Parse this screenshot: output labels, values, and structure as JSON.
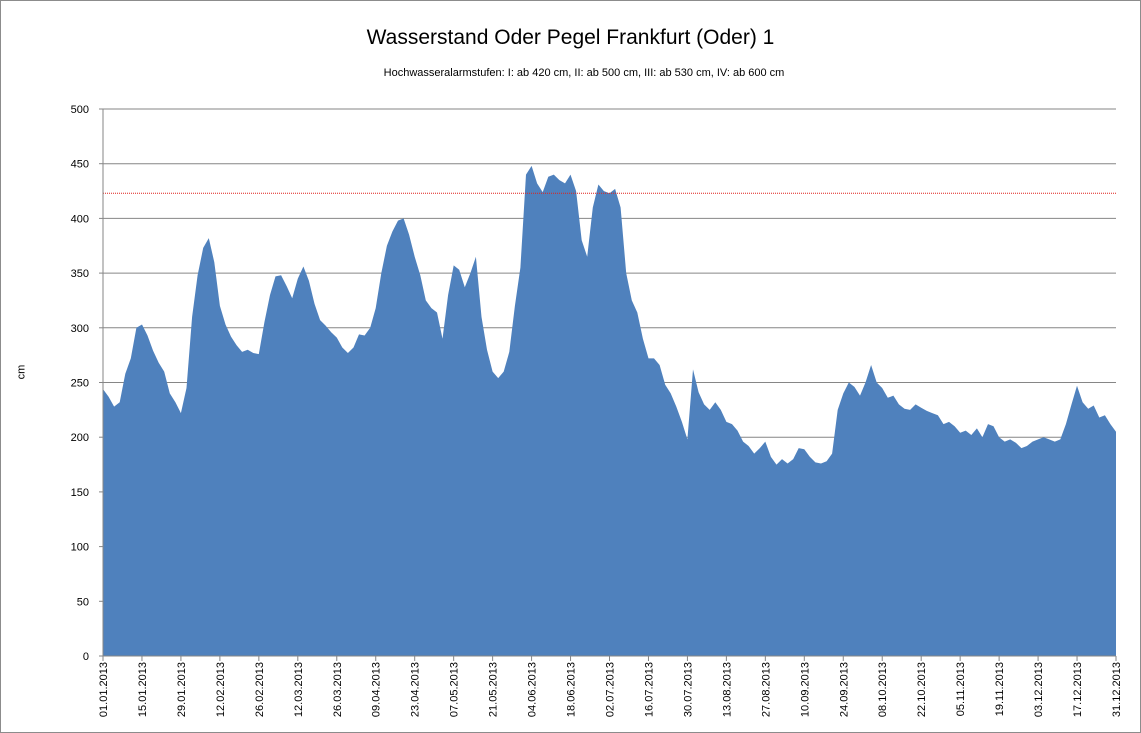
{
  "chart_data": {
    "type": "area",
    "title": "Wasserstand Oder Pegel Frankfurt (Oder) 1",
    "subtitle": "Hochwasseralarmstufen: I: ab 420 cm, II: ab 500 cm, III: ab 530 cm,  IV: ab 600 cm",
    "ylabel": "cm",
    "xlabel": "",
    "ylim": [
      0,
      500
    ],
    "yticks": [
      0,
      50,
      100,
      150,
      200,
      250,
      300,
      350,
      400,
      450,
      500
    ],
    "grid": "horizontal",
    "legend": "none",
    "colors": {
      "area": "#4f81bd",
      "threshold": "#e0201b",
      "grid": "#868686"
    },
    "threshold_line": 423,
    "x_start": "01.01.2013",
    "x_end": "31.12.2013",
    "x_tick_labels": [
      "01.01.2013",
      "15.01.2013",
      "29.01.2013",
      "12.02.2013",
      "26.02.2013",
      "12.03.2013",
      "26.03.2013",
      "09.04.2013",
      "23.04.2013",
      "07.05.2013",
      "21.05.2013",
      "04.06.2013",
      "18.06.2013",
      "02.07.2013",
      "16.07.2013",
      "30.07.2013",
      "13.08.2013",
      "27.08.2013",
      "10.09.2013",
      "24.09.2013",
      "08.10.2013",
      "22.10.2013",
      "05.11.2013",
      "19.11.2013",
      "03.12.2013",
      "17.12.2013",
      "31.12.2013"
    ],
    "series": [
      {
        "points": [
          [
            "01.01.2013",
            244
          ],
          [
            "03.01.2013",
            237
          ],
          [
            "05.01.2013",
            228
          ],
          [
            "07.01.2013",
            232
          ],
          [
            "09.01.2013",
            258
          ],
          [
            "11.01.2013",
            272
          ],
          [
            "13.01.2013",
            300
          ],
          [
            "15.01.2013",
            303
          ],
          [
            "17.01.2013",
            293
          ],
          [
            "19.01.2013",
            279
          ],
          [
            "21.01.2013",
            268
          ],
          [
            "23.01.2013",
            260
          ],
          [
            "25.01.2013",
            240
          ],
          [
            "27.01.2013",
            232
          ],
          [
            "29.01.2013",
            222
          ],
          [
            "31.01.2013",
            245
          ],
          [
            "02.02.2013",
            310
          ],
          [
            "04.02.2013",
            348
          ],
          [
            "06.02.2013",
            373
          ],
          [
            "08.02.2013",
            382
          ],
          [
            "10.02.2013",
            360
          ],
          [
            "12.02.2013",
            320
          ],
          [
            "14.02.2013",
            303
          ],
          [
            "16.02.2013",
            292
          ],
          [
            "18.02.2013",
            284
          ],
          [
            "20.02.2013",
            278
          ],
          [
            "22.02.2013",
            280
          ],
          [
            "24.02.2013",
            277
          ],
          [
            "26.02.2013",
            276
          ],
          [
            "28.02.2013",
            305
          ],
          [
            "02.03.2013",
            330
          ],
          [
            "04.03.2013",
            347
          ],
          [
            "06.03.2013",
            348
          ],
          [
            "08.03.2013",
            338
          ],
          [
            "10.03.2013",
            327
          ],
          [
            "12.03.2013",
            345
          ],
          [
            "14.03.2013",
            356
          ],
          [
            "16.03.2013",
            343
          ],
          [
            "18.03.2013",
            322
          ],
          [
            "20.03.2013",
            307
          ],
          [
            "22.03.2013",
            302
          ],
          [
            "24.03.2013",
            296
          ],
          [
            "26.03.2013",
            291
          ],
          [
            "28.03.2013",
            282
          ],
          [
            "30.03.2013",
            277
          ],
          [
            "01.04.2013",
            282
          ],
          [
            "03.04.2013",
            294
          ],
          [
            "05.04.2013",
            293
          ],
          [
            "07.04.2013",
            300
          ],
          [
            "09.04.2013",
            318
          ],
          [
            "11.04.2013",
            350
          ],
          [
            "13.04.2013",
            375
          ],
          [
            "15.04.2013",
            388
          ],
          [
            "17.04.2013",
            398
          ],
          [
            "19.04.2013",
            400
          ],
          [
            "21.04.2013",
            385
          ],
          [
            "23.04.2013",
            365
          ],
          [
            "25.04.2013",
            348
          ],
          [
            "27.04.2013",
            325
          ],
          [
            "29.04.2013",
            318
          ],
          [
            "01.05.2013",
            314
          ],
          [
            "03.05.2013",
            290
          ],
          [
            "05.05.2013",
            330
          ],
          [
            "07.05.2013",
            357
          ],
          [
            "09.05.2013",
            353
          ],
          [
            "11.05.2013",
            337
          ],
          [
            "13.05.2013",
            350
          ],
          [
            "15.05.2013",
            365
          ],
          [
            "17.05.2013",
            310
          ],
          [
            "19.05.2013",
            280
          ],
          [
            "21.05.2013",
            260
          ],
          [
            "23.05.2013",
            254
          ],
          [
            "25.05.2013",
            260
          ],
          [
            "27.05.2013",
            278
          ],
          [
            "29.05.2013",
            320
          ],
          [
            "31.05.2013",
            355
          ],
          [
            "02.06.2013",
            440
          ],
          [
            "04.06.2013",
            448
          ],
          [
            "06.06.2013",
            432
          ],
          [
            "08.06.2013",
            424
          ],
          [
            "10.06.2013",
            438
          ],
          [
            "12.06.2013",
            440
          ],
          [
            "14.06.2013",
            435
          ],
          [
            "16.06.2013",
            432
          ],
          [
            "18.06.2013",
            440
          ],
          [
            "20.06.2013",
            425
          ],
          [
            "22.06.2013",
            380
          ],
          [
            "24.06.2013",
            365
          ],
          [
            "26.06.2013",
            410
          ],
          [
            "28.06.2013",
            431
          ],
          [
            "30.06.2013",
            425
          ],
          [
            "02.07.2013",
            423
          ],
          [
            "04.07.2013",
            427
          ],
          [
            "06.07.2013",
            410
          ],
          [
            "08.07.2013",
            350
          ],
          [
            "10.07.2013",
            325
          ],
          [
            "12.07.2013",
            314
          ],
          [
            "14.07.2013",
            290
          ],
          [
            "16.07.2013",
            272
          ],
          [
            "18.07.2013",
            272
          ],
          [
            "20.07.2013",
            266
          ],
          [
            "22.07.2013",
            248
          ],
          [
            "24.07.2013",
            240
          ],
          [
            "26.07.2013",
            228
          ],
          [
            "28.07.2013",
            214
          ],
          [
            "30.07.2013",
            198
          ],
          [
            "01.08.2013",
            262
          ],
          [
            "03.08.2013",
            241
          ],
          [
            "05.08.2013",
            230
          ],
          [
            "07.08.2013",
            225
          ],
          [
            "09.08.2013",
            232
          ],
          [
            "11.08.2013",
            225
          ],
          [
            "13.08.2013",
            214
          ],
          [
            "15.08.2013",
            212
          ],
          [
            "17.08.2013",
            206
          ],
          [
            "19.08.2013",
            196
          ],
          [
            "21.08.2013",
            192
          ],
          [
            "23.08.2013",
            185
          ],
          [
            "25.08.2013",
            190
          ],
          [
            "27.08.2013",
            196
          ],
          [
            "29.08.2013",
            182
          ],
          [
            "31.08.2013",
            175
          ],
          [
            "02.09.2013",
            180
          ],
          [
            "04.09.2013",
            176
          ],
          [
            "06.09.2013",
            180
          ],
          [
            "08.09.2013",
            190
          ],
          [
            "10.09.2013",
            189
          ],
          [
            "12.09.2013",
            182
          ],
          [
            "14.09.2013",
            177
          ],
          [
            "16.09.2013",
            176
          ],
          [
            "18.09.2013",
            178
          ],
          [
            "20.09.2013",
            185
          ],
          [
            "22.09.2013",
            225
          ],
          [
            "24.09.2013",
            240
          ],
          [
            "26.09.2013",
            250
          ],
          [
            "28.09.2013",
            246
          ],
          [
            "30.09.2013",
            238
          ],
          [
            "02.10.2013",
            250
          ],
          [
            "04.10.2013",
            266
          ],
          [
            "06.10.2013",
            250
          ],
          [
            "08.10.2013",
            245
          ],
          [
            "10.10.2013",
            236
          ],
          [
            "12.10.2013",
            238
          ],
          [
            "14.10.2013",
            230
          ],
          [
            "16.10.2013",
            226
          ],
          [
            "18.10.2013",
            225
          ],
          [
            "20.10.2013",
            230
          ],
          [
            "22.10.2013",
            227
          ],
          [
            "24.10.2013",
            224
          ],
          [
            "26.10.2013",
            222
          ],
          [
            "28.10.2013",
            220
          ],
          [
            "30.10.2013",
            212
          ],
          [
            "01.11.2013",
            214
          ],
          [
            "03.11.2013",
            210
          ],
          [
            "05.11.2013",
            204
          ],
          [
            "07.11.2013",
            206
          ],
          [
            "09.11.2013",
            202
          ],
          [
            "11.11.2013",
            208
          ],
          [
            "13.11.2013",
            200
          ],
          [
            "15.11.2013",
            212
          ],
          [
            "17.11.2013",
            210
          ],
          [
            "19.11.2013",
            200
          ],
          [
            "21.11.2013",
            196
          ],
          [
            "23.11.2013",
            198
          ],
          [
            "25.11.2013",
            195
          ],
          [
            "27.11.2013",
            190
          ],
          [
            "29.11.2013",
            192
          ],
          [
            "01.12.2013",
            196
          ],
          [
            "03.12.2013",
            198
          ],
          [
            "05.12.2013",
            200
          ],
          [
            "07.12.2013",
            198
          ],
          [
            "09.12.2013",
            196
          ],
          [
            "11.12.2013",
            198
          ],
          [
            "13.12.2013",
            212
          ],
          [
            "15.12.2013",
            230
          ],
          [
            "17.12.2013",
            247
          ],
          [
            "19.12.2013",
            232
          ],
          [
            "21.12.2013",
            226
          ],
          [
            "23.12.2013",
            229
          ],
          [
            "25.12.2013",
            218
          ],
          [
            "27.12.2013",
            220
          ],
          [
            "29.12.2013",
            212
          ],
          [
            "31.12.2013",
            205
          ]
        ]
      }
    ]
  }
}
